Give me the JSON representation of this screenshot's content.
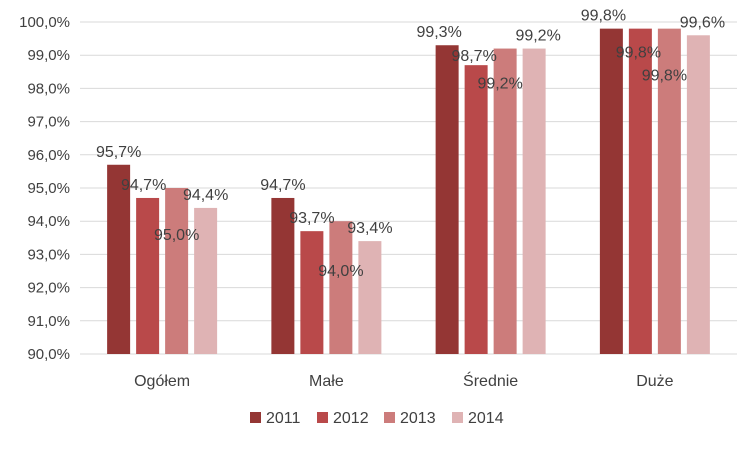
{
  "chart_data": {
    "type": "bar",
    "categories": [
      "Ogółem",
      "Małe",
      "Średnie",
      "Duże"
    ],
    "series": [
      {
        "name": "2011",
        "color": "#943634",
        "values": [
          95.7,
          94.7,
          99.3,
          99.8
        ],
        "labels": [
          "95,7%",
          "94,7%",
          "99,3%",
          "99,8%"
        ]
      },
      {
        "name": "2012",
        "color": "#B9494A",
        "values": [
          94.7,
          93.7,
          98.7,
          99.8
        ],
        "labels": [
          "94,7%",
          "93,7%",
          "98,7%",
          "99,8%"
        ]
      },
      {
        "name": "2013",
        "color": "#CC7C7B",
        "values": [
          95.0,
          94.0,
          99.2,
          99.8
        ],
        "labels": [
          "95,0%",
          "94,0%",
          "99,2%",
          "99,8%"
        ]
      },
      {
        "name": "2014",
        "color": "#DFB3B4",
        "values": [
          94.4,
          93.4,
          99.2,
          99.6
        ],
        "labels": [
          "94,4%",
          "93,4%",
          "99,2%",
          "99,6%"
        ]
      }
    ],
    "ylim": [
      90,
      100
    ],
    "yticks": [
      90,
      91,
      92,
      93,
      94,
      95,
      96,
      97,
      98,
      99,
      100
    ],
    "ytick_labels": [
      "90,0%",
      "91,0%",
      "92,0%",
      "93,0%",
      "94,0%",
      "95,0%",
      "96,0%",
      "97,0%",
      "98,0%",
      "99,0%",
      "100,0%"
    ],
    "grid": true,
    "legend": "bottom",
    "title": "",
    "xlabel": "",
    "ylabel": ""
  }
}
